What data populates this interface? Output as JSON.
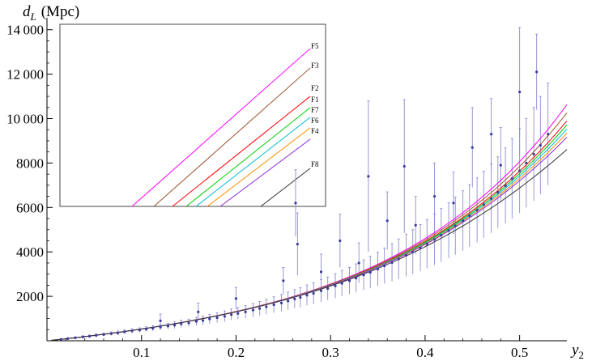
{
  "chart_data": {
    "type": "scatter",
    "xlabel": "y",
    "xlabel_sub": "2",
    "ylabel_var": "d",
    "ylabel_sub": "L",
    "ylabel_unit": "(Mpc)",
    "xlim": [
      0,
      0.55
    ],
    "ylim": [
      0,
      14500
    ],
    "x_ticks": [
      0.1,
      0.2,
      0.3,
      0.4,
      0.5
    ],
    "x_tick_labels": [
      "0.1",
      "0.2",
      "0.3",
      "0.4",
      "0.5"
    ],
    "y_ticks": [
      2000,
      4000,
      6000,
      8000,
      10000,
      12000,
      14000
    ],
    "y_tick_labels": [
      "2000",
      "4000",
      "6000",
      "8000",
      "10 000",
      "12 000",
      "14 000"
    ],
    "data_series": {
      "color": "#3b3b9e",
      "errorbar_color": "#8c8cd0",
      "points": [
        [
          0.015,
          60,
          40
        ],
        [
          0.022,
          95,
          45
        ],
        [
          0.03,
          130,
          50
        ],
        [
          0.038,
          170,
          55
        ],
        [
          0.045,
          200,
          60
        ],
        [
          0.052,
          240,
          65
        ],
        [
          0.06,
          280,
          70
        ],
        [
          0.068,
          320,
          80
        ],
        [
          0.075,
          350,
          90
        ],
        [
          0.082,
          400,
          90
        ],
        [
          0.09,
          440,
          100
        ],
        [
          0.098,
          480,
          100
        ],
        [
          0.105,
          520,
          110
        ],
        [
          0.112,
          560,
          120
        ],
        [
          0.12,
          610,
          120
        ],
        [
          0.128,
          660,
          130
        ],
        [
          0.135,
          700,
          150
        ],
        [
          0.142,
          760,
          160
        ],
        [
          0.15,
          800,
          170
        ],
        [
          0.158,
          870,
          180
        ],
        [
          0.165,
          910,
          200
        ],
        [
          0.172,
          980,
          210
        ],
        [
          0.18,
          1040,
          220
        ],
        [
          0.188,
          1100,
          240
        ],
        [
          0.195,
          1180,
          250
        ],
        [
          0.202,
          1230,
          260
        ],
        [
          0.21,
          1300,
          280
        ],
        [
          0.218,
          1380,
          300
        ],
        [
          0.225,
          1450,
          320
        ],
        [
          0.232,
          1530,
          340
        ],
        [
          0.24,
          1620,
          360
        ],
        [
          0.248,
          1700,
          380
        ],
        [
          0.255,
          1790,
          400
        ],
        [
          0.262,
          1880,
          420
        ],
        [
          0.268,
          1950,
          440
        ],
        [
          0.275,
          2050,
          460
        ],
        [
          0.282,
          2130,
          480
        ],
        [
          0.29,
          2250,
          500
        ],
        [
          0.297,
          2350,
          520
        ],
        [
          0.305,
          2470,
          550
        ],
        [
          0.312,
          2580,
          580
        ],
        [
          0.32,
          2700,
          600
        ],
        [
          0.327,
          2820,
          640
        ],
        [
          0.335,
          2960,
          680
        ],
        [
          0.342,
          3080,
          720
        ],
        [
          0.35,
          3230,
          760
        ],
        [
          0.357,
          3370,
          800
        ],
        [
          0.365,
          3520,
          850
        ],
        [
          0.372,
          3680,
          900
        ],
        [
          0.38,
          3850,
          950
        ],
        [
          0.387,
          4000,
          1000
        ],
        [
          0.395,
          4180,
          1050
        ],
        [
          0.402,
          4360,
          1100
        ],
        [
          0.41,
          4560,
          1150
        ],
        [
          0.417,
          4750,
          1200
        ],
        [
          0.425,
          4960,
          1250
        ],
        [
          0.432,
          5170,
          1300
        ],
        [
          0.44,
          5400,
          1350
        ],
        [
          0.447,
          5630,
          1400
        ],
        [
          0.455,
          5880,
          1450
        ],
        [
          0.462,
          6130,
          1500
        ],
        [
          0.47,
          6400,
          1550
        ],
        [
          0.477,
          6680,
          1600
        ],
        [
          0.485,
          6980,
          1700
        ],
        [
          0.492,
          7300,
          1800
        ],
        [
          0.5,
          7650,
          1900
        ],
        [
          0.507,
          8000,
          2000
        ],
        [
          0.515,
          8400,
          2100
        ],
        [
          0.522,
          8800,
          2200
        ],
        [
          0.53,
          9300,
          2300
        ],
        [
          0.265,
          4350,
          1400
        ],
        [
          0.263,
          6200,
          1500
        ],
        [
          0.34,
          7400,
          3400
        ],
        [
          0.378,
          7850,
          3000
        ],
        [
          0.5,
          11200,
          2900
        ],
        [
          0.518,
          12100,
          1700
        ],
        [
          0.47,
          9300,
          1600
        ],
        [
          0.31,
          4500,
          1200
        ],
        [
          0.45,
          8700,
          1800
        ],
        [
          0.41,
          6500,
          1500
        ],
        [
          0.36,
          5400,
          1300
        ],
        [
          0.2,
          1900,
          500
        ],
        [
          0.16,
          1300,
          400
        ],
        [
          0.12,
          900,
          300
        ],
        [
          0.25,
          2700,
          600
        ],
        [
          0.29,
          3100,
          800
        ],
        [
          0.33,
          3500,
          900
        ],
        [
          0.39,
          5200,
          1300
        ],
        [
          0.43,
          6200,
          1400
        ],
        [
          0.48,
          7900,
          1700
        ]
      ]
    },
    "model_curves": [
      {
        "name": "F5",
        "color": "#ff00ff",
        "scale": 1.04
      },
      {
        "name": "F3",
        "color": "#a0522d",
        "scale": 1.03
      },
      {
        "name": "F2",
        "color": "#ff0000",
        "scale": 1.02
      },
      {
        "name": "F1",
        "color": "#00cc00",
        "scale": 1.015
      },
      {
        "name": "F7",
        "color": "#00bcd4",
        "scale": 1.01
      },
      {
        "name": "F6",
        "color": "#ff8c00",
        "scale": 1.005
      },
      {
        "name": "F4",
        "color": "#8a2be2",
        "scale": 1.0
      },
      {
        "name": "F8",
        "color": "#333333",
        "scale": 0.985
      }
    ],
    "inset": {
      "labels": [
        "F5",
        "F3",
        "F2",
        "F1",
        "F7",
        "F6",
        "F4",
        "F8"
      ]
    }
  }
}
